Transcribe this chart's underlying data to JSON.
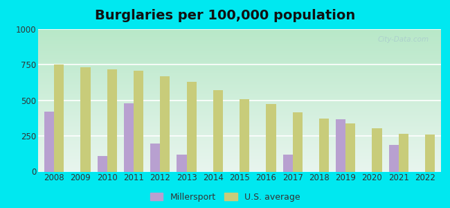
{
  "title": "Burglaries per 100,000 population",
  "years": [
    2008,
    2009,
    2010,
    2011,
    2012,
    2013,
    2014,
    2015,
    2016,
    2017,
    2018,
    2019,
    2020,
    2021,
    2022
  ],
  "millersport": [
    420,
    0,
    110,
    480,
    195,
    120,
    0,
    0,
    0,
    120,
    0,
    365,
    0,
    185,
    0
  ],
  "us_average": [
    750,
    730,
    720,
    710,
    670,
    630,
    570,
    510,
    475,
    415,
    370,
    340,
    305,
    265,
    260
  ],
  "bar_color_millersport": "#b8a0d0",
  "bar_color_us": "#c8cc7a",
  "outer_bg": "#00e8f0",
  "ylim": [
    0,
    1000
  ],
  "yticks": [
    0,
    250,
    500,
    750,
    1000
  ],
  "bar_width": 0.37,
  "legend_millersport": "Millersport",
  "legend_us": "U.S. average",
  "title_fontsize": 14,
  "tick_fontsize": 8.5,
  "legend_fontsize": 9,
  "gradient_top": "#b8e8c8",
  "gradient_bottom": "#e8f5ee"
}
